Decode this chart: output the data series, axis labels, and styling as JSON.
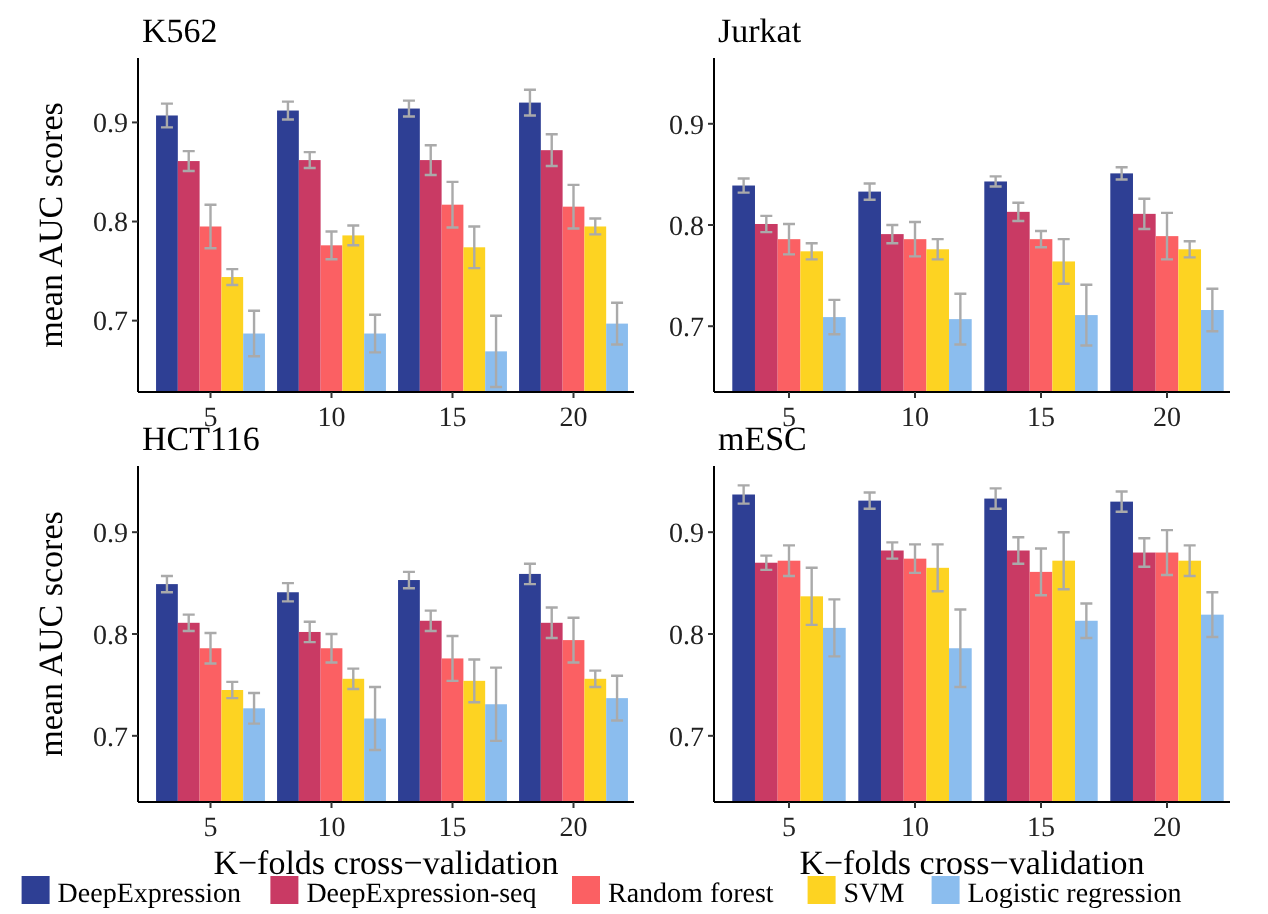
{
  "chart_data": [
    {
      "type": "bar",
      "title": "K562",
      "ylabel": "mean AUC scores",
      "categories": [
        "5",
        "10",
        "15",
        "20"
      ],
      "ylim": [
        0.628,
        0.965
      ],
      "yticks": [
        0.7,
        0.8,
        0.9
      ],
      "legend": "bottom",
      "series": [
        {
          "name": "DeepExpression",
          "color": "#2e3f94",
          "values": [
            0.907,
            0.912,
            0.914,
            0.92
          ],
          "errors": [
            0.012,
            0.009,
            0.008,
            0.013
          ]
        },
        {
          "name": "DeepExpression-seq",
          "color": "#c93a64",
          "values": [
            0.861,
            0.862,
            0.862,
            0.872
          ],
          "errors": [
            0.01,
            0.008,
            0.015,
            0.016
          ]
        },
        {
          "name": "Random forest",
          "color": "#fb6063",
          "values": [
            0.795,
            0.776,
            0.817,
            0.815
          ],
          "errors": [
            0.022,
            0.014,
            0.023,
            0.022
          ]
        },
        {
          "name": "SVM",
          "color": "#fdd322",
          "values": [
            0.744,
            0.786,
            0.774,
            0.795
          ],
          "errors": [
            0.008,
            0.01,
            0.021,
            0.008
          ]
        },
        {
          "name": "Logistic regression",
          "color": "#8bbdee",
          "values": [
            0.687,
            0.687,
            0.669,
            0.697
          ],
          "errors": [
            0.023,
            0.019,
            0.036,
            0.021
          ]
        }
      ]
    },
    {
      "type": "bar",
      "title": "Jurkat",
      "categories": [
        "5",
        "10",
        "15",
        "20"
      ],
      "ylim": [
        0.635,
        0.965
      ],
      "yticks": [
        0.7,
        0.8,
        0.9
      ],
      "series": [
        {
          "color": "#2e3f94",
          "values": [
            0.839,
            0.833,
            0.843,
            0.851
          ],
          "errors": [
            0.007,
            0.008,
            0.005,
            0.006
          ]
        },
        {
          "color": "#c93a64",
          "values": [
            0.801,
            0.791,
            0.813,
            0.811
          ],
          "errors": [
            0.008,
            0.009,
            0.009,
            0.015
          ]
        },
        {
          "color": "#fb6063",
          "values": [
            0.786,
            0.786,
            0.786,
            0.789
          ],
          "errors": [
            0.015,
            0.017,
            0.008,
            0.023
          ]
        },
        {
          "color": "#fdd322",
          "values": [
            0.774,
            0.776,
            0.764,
            0.776
          ],
          "errors": [
            0.008,
            0.01,
            0.022,
            0.008
          ]
        },
        {
          "color": "#8bbdee",
          "values": [
            0.709,
            0.707,
            0.711,
            0.716
          ],
          "errors": [
            0.017,
            0.025,
            0.03,
            0.021
          ]
        }
      ]
    },
    {
      "type": "bar",
      "title": "HCT116",
      "ylabel": "mean AUC scores",
      "xlabel": "K−folds cross−validation",
      "categories": [
        "5",
        "10",
        "15",
        "20"
      ],
      "ylim": [
        0.635,
        0.965
      ],
      "yticks": [
        0.7,
        0.8,
        0.9
      ],
      "series": [
        {
          "color": "#2e3f94",
          "values": [
            0.849,
            0.841,
            0.853,
            0.859
          ],
          "errors": [
            0.008,
            0.009,
            0.008,
            0.01
          ]
        },
        {
          "color": "#c93a64",
          "values": [
            0.811,
            0.802,
            0.813,
            0.811
          ],
          "errors": [
            0.008,
            0.01,
            0.01,
            0.015
          ]
        },
        {
          "color": "#fb6063",
          "values": [
            0.786,
            0.786,
            0.776,
            0.794
          ],
          "errors": [
            0.015,
            0.014,
            0.022,
            0.022
          ]
        },
        {
          "color": "#fdd322",
          "values": [
            0.745,
            0.756,
            0.754,
            0.756
          ],
          "errors": [
            0.008,
            0.01,
            0.021,
            0.008
          ]
        },
        {
          "color": "#8bbdee",
          "values": [
            0.727,
            0.717,
            0.731,
            0.737
          ],
          "errors": [
            0.015,
            0.031,
            0.036,
            0.022
          ]
        }
      ]
    },
    {
      "type": "bar",
      "title": "mESC",
      "xlabel": "K−folds cross−validation",
      "categories": [
        "5",
        "10",
        "15",
        "20"
      ],
      "ylim": [
        0.635,
        0.965
      ],
      "yticks": [
        0.7,
        0.8,
        0.9
      ],
      "series": [
        {
          "color": "#2e3f94",
          "values": [
            0.937,
            0.931,
            0.933,
            0.93
          ],
          "errors": [
            0.009,
            0.008,
            0.01,
            0.01
          ]
        },
        {
          "color": "#c93a64",
          "values": [
            0.87,
            0.882,
            0.882,
            0.88
          ],
          "errors": [
            0.007,
            0.008,
            0.013,
            0.014
          ]
        },
        {
          "color": "#fb6063",
          "values": [
            0.872,
            0.874,
            0.861,
            0.88
          ],
          "errors": [
            0.015,
            0.014,
            0.023,
            0.022
          ]
        },
        {
          "color": "#fdd322",
          "values": [
            0.837,
            0.865,
            0.872,
            0.872
          ],
          "errors": [
            0.028,
            0.023,
            0.028,
            0.015
          ]
        },
        {
          "color": "#8bbdee",
          "values": [
            0.806,
            0.786,
            0.813,
            0.819
          ],
          "errors": [
            0.028,
            0.038,
            0.017,
            0.022
          ]
        }
      ]
    }
  ]
}
